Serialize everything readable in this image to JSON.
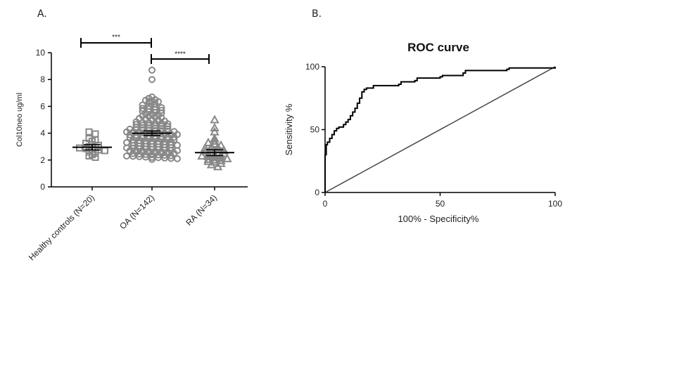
{
  "panels": {
    "a_label": "A.",
    "b_label": "B."
  },
  "colors": {
    "ink": "#000000",
    "marker_grey": "#888888",
    "ref_line": "#444444"
  },
  "chart_data": [
    {
      "type": "scatter",
      "variant": "dot-plot with mean and SEM",
      "title": "",
      "ylabel": "Col10neo ug/ml",
      "xlabel": "",
      "ylim": [
        0,
        10
      ],
      "yticks": [
        "0",
        "2",
        "4",
        "6",
        "8",
        "10"
      ],
      "categories": [
        "Healthy controls (N=20)",
        "OA (N=142)",
        "RA (N=34)"
      ],
      "markers": [
        "square",
        "circle",
        "triangle"
      ],
      "means": [
        2.95,
        4.0,
        2.55
      ],
      "sem": [
        0.2,
        0.17,
        0.22
      ],
      "series": [
        {
          "name": "Healthy controls (N=20)",
          "values": [
            4.1,
            3.95,
            3.6,
            3.5,
            3.4,
            3.25,
            3.15,
            3.1,
            3.0,
            2.95,
            2.9,
            2.85,
            2.8,
            2.75,
            2.7,
            2.6,
            2.5,
            2.4,
            2.3,
            2.2
          ]
        },
        {
          "name": "OA (N=142)",
          "values": [
            8.7,
            8.0,
            6.7,
            6.6,
            6.5,
            6.45,
            6.4,
            6.35,
            6.3,
            6.2,
            6.1,
            6.0,
            5.95,
            5.9,
            5.85,
            5.8,
            5.75,
            5.7,
            5.65,
            5.6,
            5.55,
            5.5,
            5.45,
            5.4,
            5.35,
            5.3,
            5.25,
            5.2,
            5.15,
            5.1,
            5.05,
            5.0,
            4.95,
            4.9,
            4.85,
            4.8,
            4.78,
            4.75,
            4.72,
            4.7,
            4.65,
            4.6,
            4.58,
            4.55,
            4.52,
            4.5,
            4.45,
            4.42,
            4.4,
            4.38,
            4.35,
            4.32,
            4.3,
            4.28,
            4.25,
            4.22,
            4.2,
            4.18,
            4.15,
            4.12,
            4.1,
            4.08,
            4.05,
            4.02,
            4.0,
            3.98,
            3.95,
            3.92,
            3.9,
            3.88,
            3.85,
            3.82,
            3.8,
            3.78,
            3.75,
            3.72,
            3.7,
            3.68,
            3.65,
            3.62,
            3.6,
            3.58,
            3.55,
            3.52,
            3.5,
            3.48,
            3.45,
            3.42,
            3.4,
            3.38,
            3.35,
            3.32,
            3.3,
            3.28,
            3.25,
            3.22,
            3.2,
            3.18,
            3.15,
            3.12,
            3.1,
            3.08,
            3.05,
            3.02,
            3.0,
            2.98,
            2.95,
            2.92,
            2.9,
            2.88,
            2.85,
            2.82,
            2.8,
            2.78,
            2.75,
            2.72,
            2.7,
            2.68,
            2.65,
            2.62,
            2.6,
            2.58,
            2.55,
            2.52,
            2.5,
            2.48,
            2.45,
            2.42,
            2.4,
            2.38,
            2.35,
            2.32,
            2.3,
            2.28,
            2.25,
            2.22,
            2.2,
            2.18,
            2.15,
            2.12,
            2.1,
            2.05
          ]
        },
        {
          "name": "RA (N=34)",
          "values": [
            5.0,
            4.4,
            4.1,
            3.6,
            3.4,
            3.3,
            3.2,
            3.1,
            3.0,
            2.95,
            2.9,
            2.85,
            2.8,
            2.7,
            2.65,
            2.6,
            2.55,
            2.5,
            2.45,
            2.4,
            2.35,
            2.3,
            2.25,
            2.2,
            2.15,
            2.1,
            2.05,
            2.0,
            1.95,
            1.9,
            1.85,
            1.75,
            1.65,
            1.5
          ]
        }
      ],
      "significance": [
        {
          "from": 0,
          "to": 1,
          "label": "***"
        },
        {
          "from": 1,
          "to": 2,
          "label": "****"
        }
      ]
    },
    {
      "type": "line",
      "title": "ROC curve",
      "xlabel": "100% - Specificity%",
      "ylabel": "Sensitivity %",
      "xlim": [
        0,
        100
      ],
      "ylim": [
        0,
        100
      ],
      "xticks": [
        "0",
        "50",
        "100"
      ],
      "yticks": [
        "0",
        "50",
        "100"
      ],
      "series": [
        {
          "name": "ROC",
          "x": [
            0,
            0,
            0.5,
            1,
            2,
            3,
            4,
            5,
            6,
            8,
            9,
            10,
            11,
            12,
            13,
            14,
            15,
            16,
            17,
            18,
            21,
            32,
            33,
            39,
            40,
            50,
            51,
            60,
            61,
            79,
            80,
            100
          ],
          "y": [
            0,
            30,
            38,
            40,
            43,
            46,
            49,
            51,
            52,
            54,
            56,
            58,
            61,
            64,
            67,
            71,
            75,
            80,
            82,
            83,
            85,
            86,
            88,
            89,
            91,
            92,
            93,
            95,
            97,
            98,
            99,
            100
          ]
        },
        {
          "name": "Reference",
          "x": [
            0,
            100
          ],
          "y": [
            0,
            100
          ]
        }
      ]
    }
  ]
}
